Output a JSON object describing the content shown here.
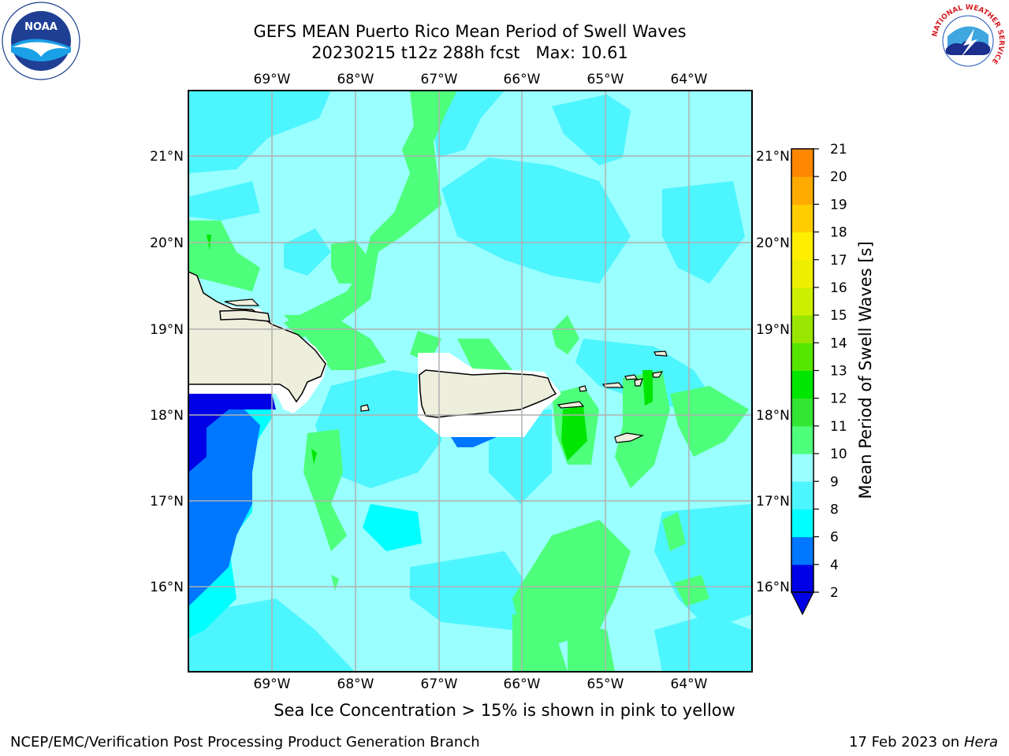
{
  "header": {
    "title_line1": "GEFS MEAN Puerto Rico Mean Period of Swell Waves",
    "title_line2_run": "20230215 t12z 288h fcst",
    "title_line2_max": "Max: 10.61"
  },
  "logos": {
    "left": "NOAA",
    "right_ring_text": "NATIONAL WEATHER SERVICE"
  },
  "map": {
    "lon_labels": [
      "69°W",
      "68°W",
      "67°W",
      "66°W",
      "65°W",
      "64°W"
    ],
    "lat_labels": [
      "21°N",
      "20°N",
      "19°N",
      "18°N",
      "17°N",
      "16°N"
    ],
    "colors": {
      "water_light": "#99ffff",
      "water_mid": "#4df5ff",
      "water_cyan": "#00ffff",
      "green_light": "#4dff7a",
      "land": "#eeeedd",
      "grid": "#b0b0b0"
    }
  },
  "colorbar": {
    "label": "Mean Period of Swell Waves [s]",
    "ticks": [
      "2",
      "4",
      "6",
      "8",
      "9",
      "10",
      "11",
      "12",
      "13",
      "14",
      "15",
      "16",
      "17",
      "18",
      "19",
      "20",
      "21"
    ],
    "colors": [
      "#0000e6",
      "#0077ff",
      "#00ffff",
      "#4df5ff",
      "#99ffff",
      "#4dff7a",
      "#33e633",
      "#00e600",
      "#55e600",
      "#99e600",
      "#ccee00",
      "#eeee00",
      "#ffee00",
      "#ffcc00",
      "#ffaa00",
      "#ff8800",
      "#ff5500",
      "#ff2200",
      "#ff0000"
    ]
  },
  "caption": "Sea Ice Concentration > 15% is shown in pink to yellow",
  "footer": {
    "left": "NCEP/EMC/Verification Post Processing Product Generation Branch",
    "right_date": "17 Feb 2023 on",
    "right_host": "Hera"
  }
}
